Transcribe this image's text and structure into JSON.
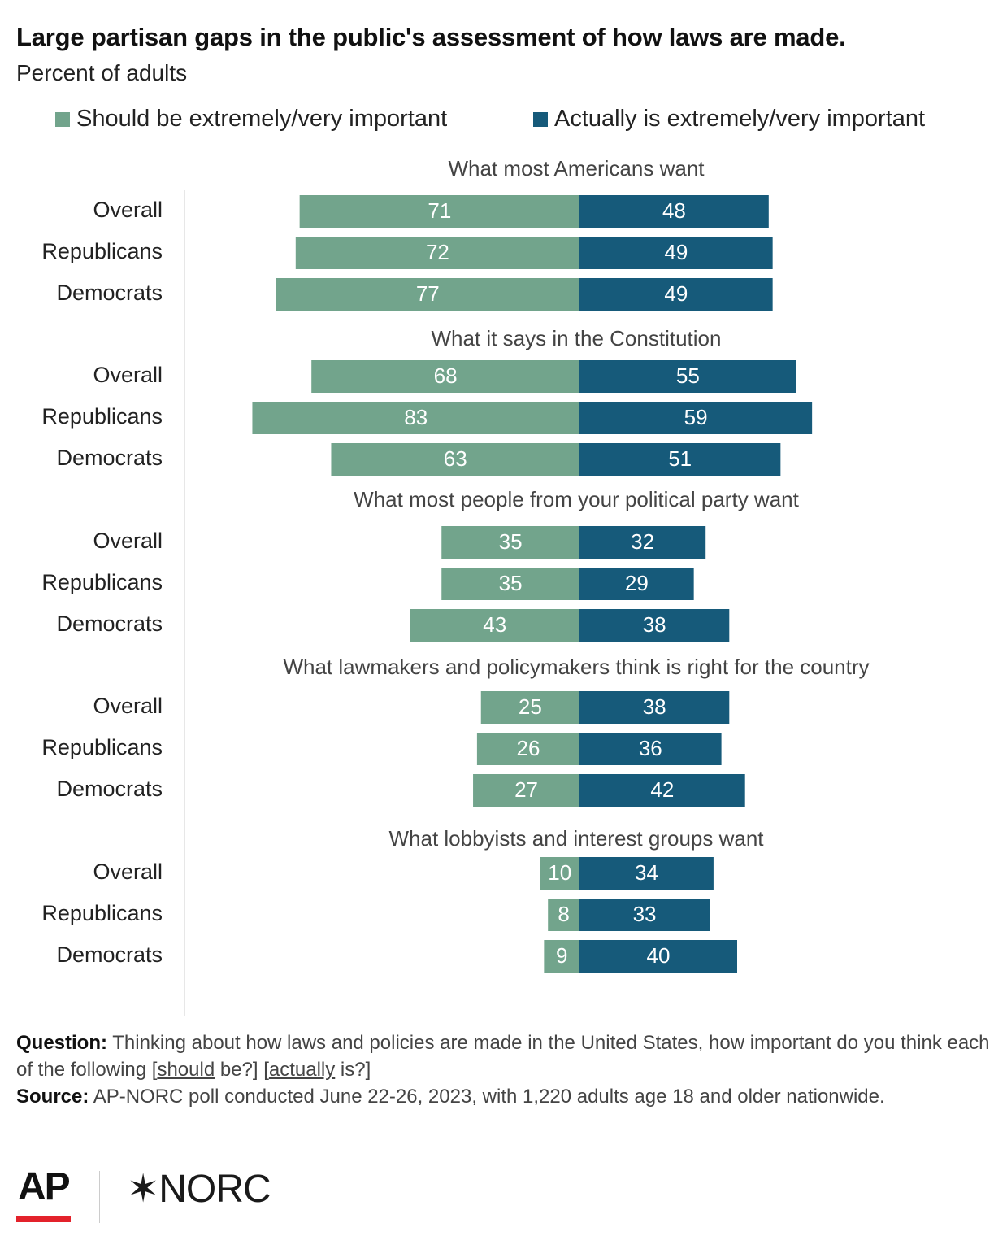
{
  "title": "Large partisan gaps in the public's assessment of how laws are made.",
  "subtitle": "Percent of adults",
  "legend": {
    "should_label": "Should be extremely/very important",
    "actual_label": "Actually is extremely/very important"
  },
  "colors": {
    "should": "#72a48c",
    "actual": "#165a7a",
    "ap_red": "#e3222b"
  },
  "chart_data": {
    "type": "bar",
    "orientation": "diverging-horizontal",
    "series": [
      {
        "name": "Should be extremely/very important",
        "key": "should"
      },
      {
        "name": "Actually is extremely/very important",
        "key": "actual"
      }
    ],
    "groups": [
      {
        "label": "What most Americans want",
        "rows": [
          {
            "label": "Overall",
            "should": 71,
            "actual": 48
          },
          {
            "label": "Republicans",
            "should": 72,
            "actual": 49
          },
          {
            "label": "Democrats",
            "should": 77,
            "actual": 49
          }
        ]
      },
      {
        "label": "What it says in the Constitution",
        "rows": [
          {
            "label": "Overall",
            "should": 68,
            "actual": 55
          },
          {
            "label": "Republicans",
            "should": 83,
            "actual": 59
          },
          {
            "label": "Democrats",
            "should": 63,
            "actual": 51
          }
        ]
      },
      {
        "label": "What most people from your political party want",
        "rows": [
          {
            "label": "Overall",
            "should": 35,
            "actual": 32
          },
          {
            "label": "Republicans",
            "should": 35,
            "actual": 29
          },
          {
            "label": "Democrats",
            "should": 43,
            "actual": 38
          }
        ]
      },
      {
        "label": "What lawmakers and policymakers think is right for the country",
        "rows": [
          {
            "label": "Overall",
            "should": 25,
            "actual": 38
          },
          {
            "label": "Republicans",
            "should": 26,
            "actual": 36
          },
          {
            "label": "Democrats",
            "should": 27,
            "actual": 42
          }
        ]
      },
      {
        "label": "What lobbyists and interest groups want",
        "rows": [
          {
            "label": "Overall",
            "should": 10,
            "actual": 34
          },
          {
            "label": "Republicans",
            "should": 8,
            "actual": 33
          },
          {
            "label": "Democrats",
            "should": 9,
            "actual": 40
          }
        ]
      }
    ]
  },
  "footer": {
    "question_label": "Question:",
    "question_text_1": " Thinking about how laws and policies are made in the United States, how important do you think each of the following [",
    "question_should": "should",
    "question_text_2": " be?] [",
    "question_actually": "actually",
    "question_text_3": " is?]",
    "source_label": "Source:",
    "source_text": " AP-NORC poll conducted June 22-26, 2023, with 1,220 adults age 18 and older nationwide."
  },
  "logos": {
    "ap": "AP",
    "norc": "✶NORC"
  }
}
